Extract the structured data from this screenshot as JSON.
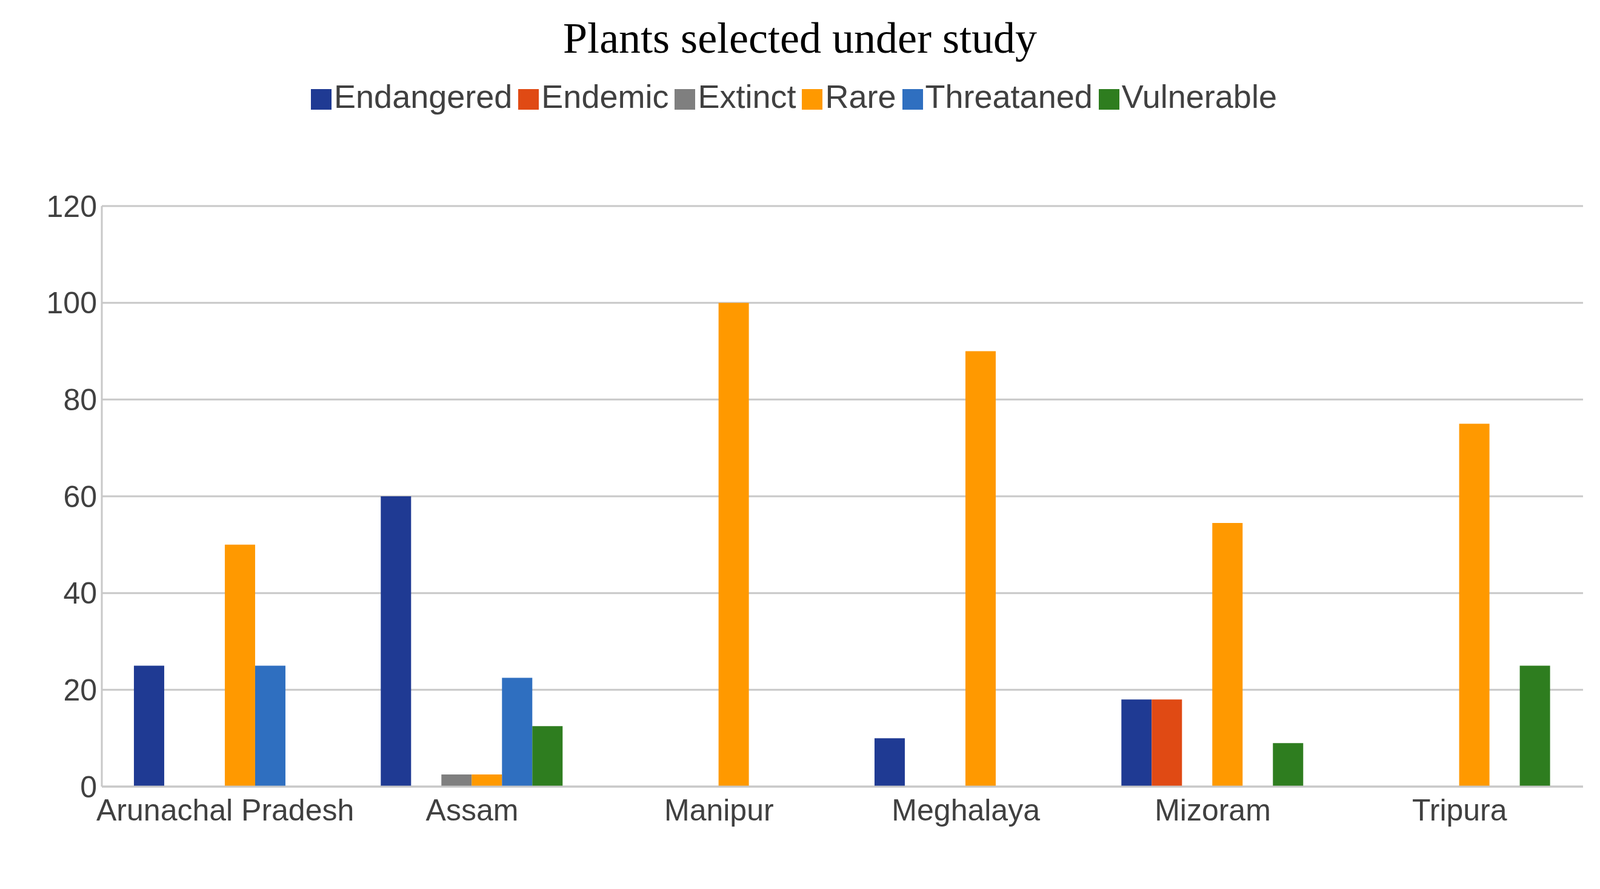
{
  "chart_data": {
    "type": "bar",
    "title": "Plants selected under study",
    "categories": [
      "Arunachal Pradesh",
      "Assam",
      "Manipur",
      "Meghalaya",
      "Mizoram",
      "Tripura"
    ],
    "series": [
      {
        "name": "Endangered",
        "color": "#1f3a93",
        "values": [
          25,
          60,
          0,
          10,
          18,
          0
        ]
      },
      {
        "name": "Endemic",
        "color": "#e04a14",
        "values": [
          0,
          0,
          0,
          0,
          18,
          0
        ]
      },
      {
        "name": "Extinct",
        "color": "#7f7f7f",
        "values": [
          0,
          2.5,
          0,
          0,
          0,
          0
        ]
      },
      {
        "name": "Rare",
        "color": "#ff9900",
        "values": [
          50,
          2.5,
          100,
          90,
          54.5,
          75
        ]
      },
      {
        "name": "Threataned",
        "color": "#2f6fc0",
        "values": [
          25,
          22.5,
          0,
          0,
          0,
          0
        ]
      },
      {
        "name": "Vulnerable",
        "color": "#2e7d1f",
        "values": [
          0,
          12.5,
          0,
          0,
          9,
          25
        ]
      }
    ],
    "ylim": [
      0,
      120
    ],
    "yticks": [
      0,
      20,
      40,
      60,
      80,
      100,
      120
    ],
    "grid": true,
    "legend": "top"
  }
}
